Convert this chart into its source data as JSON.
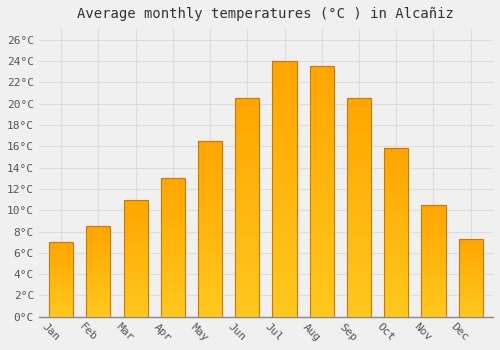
{
  "title": "Average monthly temperatures (°C ) in Alcañiz",
  "months": [
    "Jan",
    "Feb",
    "Mar",
    "Apr",
    "May",
    "Jun",
    "Jul",
    "Aug",
    "Sep",
    "Oct",
    "Nov",
    "Dec"
  ],
  "values": [
    7.0,
    8.5,
    11.0,
    13.0,
    16.5,
    20.5,
    24.0,
    23.5,
    20.5,
    15.8,
    10.5,
    7.3
  ],
  "bar_color": "#FFA500",
  "bar_edge_color": "#CC7700",
  "background_color": "#F0F0F0",
  "grid_color": "#DDDDDD",
  "ylim": [
    0,
    27
  ],
  "yticks": [
    0,
    2,
    4,
    6,
    8,
    10,
    12,
    14,
    16,
    18,
    20,
    22,
    24,
    26
  ],
  "ytick_labels": [
    "0°C",
    "2°C",
    "4°C",
    "6°C",
    "8°C",
    "10°C",
    "12°C",
    "14°C",
    "16°C",
    "18°C",
    "20°C",
    "22°C",
    "24°C",
    "26°C"
  ],
  "title_fontsize": 10,
  "tick_fontsize": 8,
  "bar_width": 0.65,
  "xlabel_rotation": -45
}
